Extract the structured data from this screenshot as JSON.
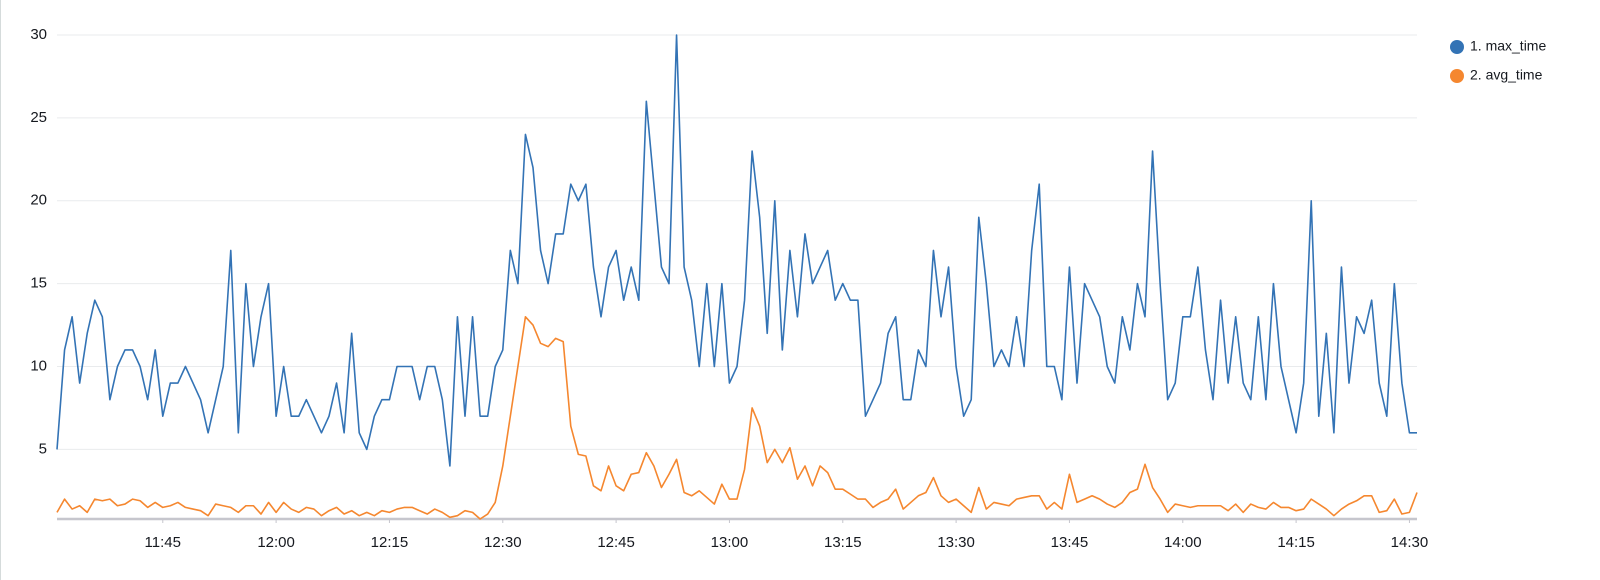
{
  "chart_data": {
    "type": "line",
    "categories": [
      "11:31",
      "11:32",
      "11:33",
      "11:34",
      "11:35",
      "11:36",
      "11:37",
      "11:38",
      "11:39",
      "11:40",
      "11:41",
      "11:42",
      "11:43",
      "11:44",
      "11:45",
      "11:46",
      "11:47",
      "11:48",
      "11:49",
      "11:50",
      "11:51",
      "11:52",
      "11:53",
      "11:54",
      "11:55",
      "11:56",
      "11:57",
      "11:58",
      "11:59",
      "12:00",
      "12:01",
      "12:02",
      "12:03",
      "12:04",
      "12:05",
      "12:06",
      "12:07",
      "12:08",
      "12:09",
      "12:10",
      "12:11",
      "12:12",
      "12:13",
      "12:14",
      "12:15",
      "12:16",
      "12:17",
      "12:18",
      "12:19",
      "12:20",
      "12:21",
      "12:22",
      "12:23",
      "12:24",
      "12:25",
      "12:26",
      "12:27",
      "12:28",
      "12:29",
      "12:30",
      "12:31",
      "12:32",
      "12:33",
      "12:34",
      "12:35",
      "12:36",
      "12:37",
      "12:38",
      "12:39",
      "12:40",
      "12:41",
      "12:42",
      "12:43",
      "12:44",
      "12:45",
      "12:46",
      "12:47",
      "12:48",
      "12:49",
      "12:50",
      "12:51",
      "12:52",
      "12:53",
      "12:54",
      "12:55",
      "12:56",
      "12:57",
      "12:58",
      "12:59",
      "13:00",
      "13:01",
      "13:02",
      "13:03",
      "13:04",
      "13:05",
      "13:06",
      "13:07",
      "13:08",
      "13:09",
      "13:10",
      "13:11",
      "13:12",
      "13:13",
      "13:14",
      "13:15",
      "13:16",
      "13:17",
      "13:18",
      "13:19",
      "13:20",
      "13:21",
      "13:22",
      "13:23",
      "13:24",
      "13:25",
      "13:26",
      "13:27",
      "13:28",
      "13:29",
      "13:30",
      "13:31",
      "13:32",
      "13:33",
      "13:34",
      "13:35",
      "13:36",
      "13:37",
      "13:38",
      "13:39",
      "13:40",
      "13:41",
      "13:42",
      "13:43",
      "13:44",
      "13:45",
      "13:46",
      "13:47",
      "13:48",
      "13:49",
      "13:50",
      "13:51",
      "13:52",
      "13:53",
      "13:54",
      "13:55",
      "13:56",
      "13:57",
      "13:58",
      "13:59",
      "14:00",
      "14:01",
      "14:02",
      "14:03",
      "14:04",
      "14:05",
      "14:06",
      "14:07",
      "14:08",
      "14:09",
      "14:10",
      "14:11",
      "14:12",
      "14:13",
      "14:14",
      "14:15",
      "14:16",
      "14:17",
      "14:18",
      "14:19",
      "14:20",
      "14:21",
      "14:22",
      "14:23",
      "14:24",
      "14:25",
      "14:26",
      "14:27",
      "14:28",
      "14:29",
      "14:30",
      "14:31"
    ],
    "xticks": [
      "11:45",
      "12:00",
      "12:15",
      "12:30",
      "12:45",
      "13:00",
      "13:15",
      "13:30",
      "13:45",
      "14:00",
      "14:15",
      "14:30"
    ],
    "ylim": [
      0.8,
      30
    ],
    "yticks": [
      5,
      10,
      15,
      20,
      25,
      30
    ],
    "grid": true,
    "legend": "right",
    "series": [
      {
        "name": "1. max_time",
        "color": "#3373b5",
        "values": [
          5,
          11,
          13,
          9,
          12,
          14,
          13,
          8,
          10,
          11,
          11,
          10,
          8,
          11,
          7,
          9,
          9,
          10,
          9,
          8,
          6,
          8,
          10,
          17,
          6,
          15,
          10,
          13,
          15,
          7,
          10,
          7,
          7,
          8,
          7,
          6,
          7,
          9,
          6,
          12,
          6,
          5,
          7,
          8,
          8,
          10,
          10,
          10,
          8,
          10,
          10,
          8,
          4,
          13,
          7,
          13,
          7,
          7,
          10,
          11,
          17,
          15,
          24,
          22,
          17,
          15,
          18,
          18,
          21,
          20,
          21,
          16,
          13,
          16,
          17,
          14,
          16,
          14,
          26,
          21,
          16,
          15,
          30,
          16,
          14,
          10,
          15,
          10,
          15,
          9,
          10,
          14,
          23,
          19,
          12,
          20,
          11,
          17,
          13,
          18,
          15,
          16,
          17,
          14,
          15,
          14,
          14,
          7,
          8,
          9,
          12,
          13,
          8,
          8,
          11,
          10,
          17,
          13,
          16,
          10,
          7,
          8,
          19,
          15,
          10,
          11,
          10,
          13,
          10,
          17,
          21,
          10,
          10,
          8,
          16,
          9,
          15,
          14,
          13,
          10,
          9,
          13,
          11,
          15,
          13,
          23,
          15,
          8,
          9,
          13,
          13,
          16,
          11,
          8,
          14,
          9,
          13,
          9,
          8,
          13,
          8,
          15,
          10,
          8,
          6,
          9,
          20,
          7,
          12,
          6,
          16,
          9,
          13,
          12,
          14,
          9,
          7,
          15,
          9,
          6,
          6
        ]
      },
      {
        "name": "2. avg_time",
        "color": "#f5872f",
        "values": [
          1.2,
          2.0,
          1.4,
          1.6,
          1.2,
          2.0,
          1.9,
          2.0,
          1.6,
          1.7,
          2.0,
          1.9,
          1.5,
          1.8,
          1.5,
          1.6,
          1.8,
          1.5,
          1.4,
          1.3,
          1.0,
          1.7,
          1.6,
          1.5,
          1.2,
          1.6,
          1.6,
          1.1,
          1.8,
          1.2,
          1.8,
          1.4,
          1.2,
          1.5,
          1.4,
          1.0,
          1.3,
          1.5,
          1.1,
          1.3,
          1.0,
          1.2,
          1.0,
          1.3,
          1.2,
          1.4,
          1.5,
          1.5,
          1.3,
          1.1,
          1.4,
          1.2,
          0.9,
          1.0,
          1.3,
          1.2,
          0.8,
          1.1,
          1.8,
          4.0,
          7.0,
          10.0,
          13.0,
          12.5,
          11.4,
          11.2,
          11.7,
          11.5,
          6.4,
          4.7,
          4.6,
          2.8,
          2.5,
          4.0,
          2.8,
          2.5,
          3.5,
          3.6,
          4.8,
          4.0,
          2.7,
          3.5,
          4.4,
          2.4,
          2.2,
          2.5,
          2.1,
          1.7,
          2.9,
          2.0,
          2.0,
          3.8,
          7.5,
          6.4,
          4.2,
          5.0,
          4.2,
          5.1,
          3.2,
          4.0,
          2.8,
          4.0,
          3.6,
          2.6,
          2.6,
          2.3,
          2.0,
          2.0,
          1.5,
          1.8,
          2.0,
          2.6,
          1.4,
          1.8,
          2.2,
          2.4,
          3.3,
          2.2,
          1.8,
          2.0,
          1.6,
          1.2,
          2.7,
          1.4,
          1.8,
          1.7,
          1.6,
          2.0,
          2.1,
          2.2,
          2.2,
          1.4,
          1.8,
          1.4,
          3.5,
          1.8,
          2.0,
          2.2,
          2.0,
          1.7,
          1.5,
          1.8,
          2.4,
          2.6,
          4.1,
          2.7,
          2.0,
          1.2,
          1.7,
          1.6,
          1.5,
          1.6,
          1.6,
          1.6,
          1.6,
          1.3,
          1.7,
          1.2,
          1.7,
          1.5,
          1.4,
          1.8,
          1.5,
          1.5,
          1.3,
          1.4,
          2.0,
          1.7,
          1.4,
          1.0,
          1.4,
          1.7,
          1.9,
          2.2,
          2.2,
          1.2,
          1.3,
          2.0,
          1.1,
          1.2,
          2.4
        ]
      }
    ]
  }
}
